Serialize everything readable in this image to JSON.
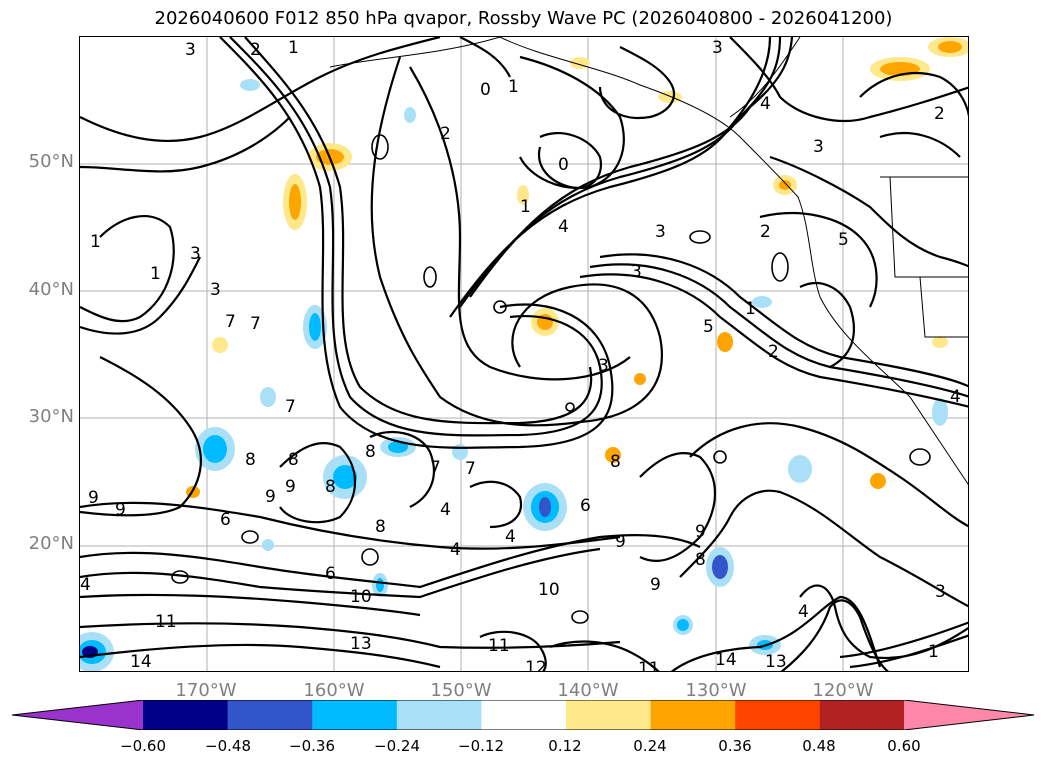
{
  "title": "2026040600 F012 850 hPa qvapor, Rossby Wave PC (2026040800 - 2026041200)",
  "lat_labels": [
    "50°N",
    "40°N",
    "30°N",
    "20°N"
  ],
  "lon_labels": [
    "170°W",
    "160°W",
    "150°W",
    "140°W",
    "130°W",
    "120°W"
  ],
  "contour_labels": [
    "3",
    "2",
    "1",
    "0",
    "1",
    "2",
    "3",
    "4",
    "5",
    "6",
    "7",
    "8",
    "9",
    "10",
    "11",
    "12",
    "13",
    "14"
  ],
  "colorbar": {
    "ticks": [
      "−0.60",
      "−0.48",
      "−0.36",
      "−0.24",
      "−0.12",
      "0.12",
      "0.24",
      "0.36",
      "0.48",
      "0.60"
    ],
    "colors": [
      "#9933cc",
      "#000088",
      "#3355cc",
      "#00bbff",
      "#aadff8",
      "#ffffff",
      "#ffe88a",
      "#ffa500",
      "#ff4400",
      "#b22222",
      "#ff88aa"
    ]
  }
}
